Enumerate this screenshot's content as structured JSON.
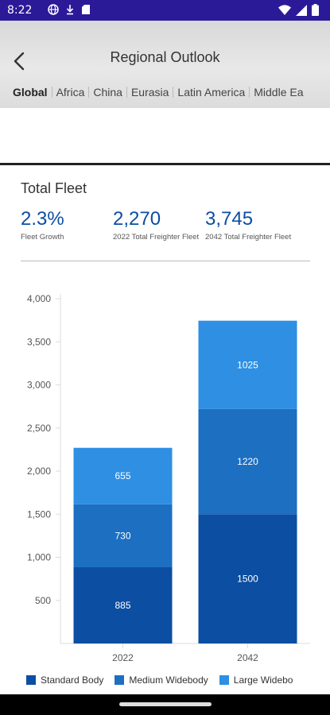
{
  "status_bar": {
    "time": "8:22",
    "background": "#2b1a97"
  },
  "header": {
    "title": "Regional Outlook",
    "tabs": [
      {
        "label": "Global",
        "active": true
      },
      {
        "label": "Africa"
      },
      {
        "label": "China"
      },
      {
        "label": "Eurasia"
      },
      {
        "label": "Latin America"
      },
      {
        "label": "Middle Ea"
      }
    ]
  },
  "card": {
    "title": "Total Fleet",
    "stats": [
      {
        "value": "2.3%",
        "label": "Fleet Growth"
      },
      {
        "value": "2,270",
        "label": "2022 Total Freighter Fleet"
      },
      {
        "value": "3,745",
        "label": "2042 Total Freighter Fleet"
      }
    ]
  },
  "chart_data": {
    "type": "bar",
    "stacked": true,
    "categories": [
      "2022",
      "2042"
    ],
    "series": [
      {
        "name": "Standard Body",
        "values": [
          885,
          1500
        ],
        "color": "#0b4ea2"
      },
      {
        "name": "Medium Widebody",
        "values": [
          730,
          1220
        ],
        "color": "#1c6fc1"
      },
      {
        "name": "Large Widebody",
        "values": [
          655,
          1025
        ],
        "color": "#2e8fe3"
      }
    ],
    "yticks": [
      "500",
      "1,000",
      "1,500",
      "2,000",
      "2,500",
      "3,000",
      "3,500",
      "4,000"
    ],
    "ylim": [
      0,
      4000
    ],
    "legend": [
      "Standard Body",
      "Medium Widebody",
      "Large Widebo"
    ],
    "legend_position": "bottom"
  }
}
